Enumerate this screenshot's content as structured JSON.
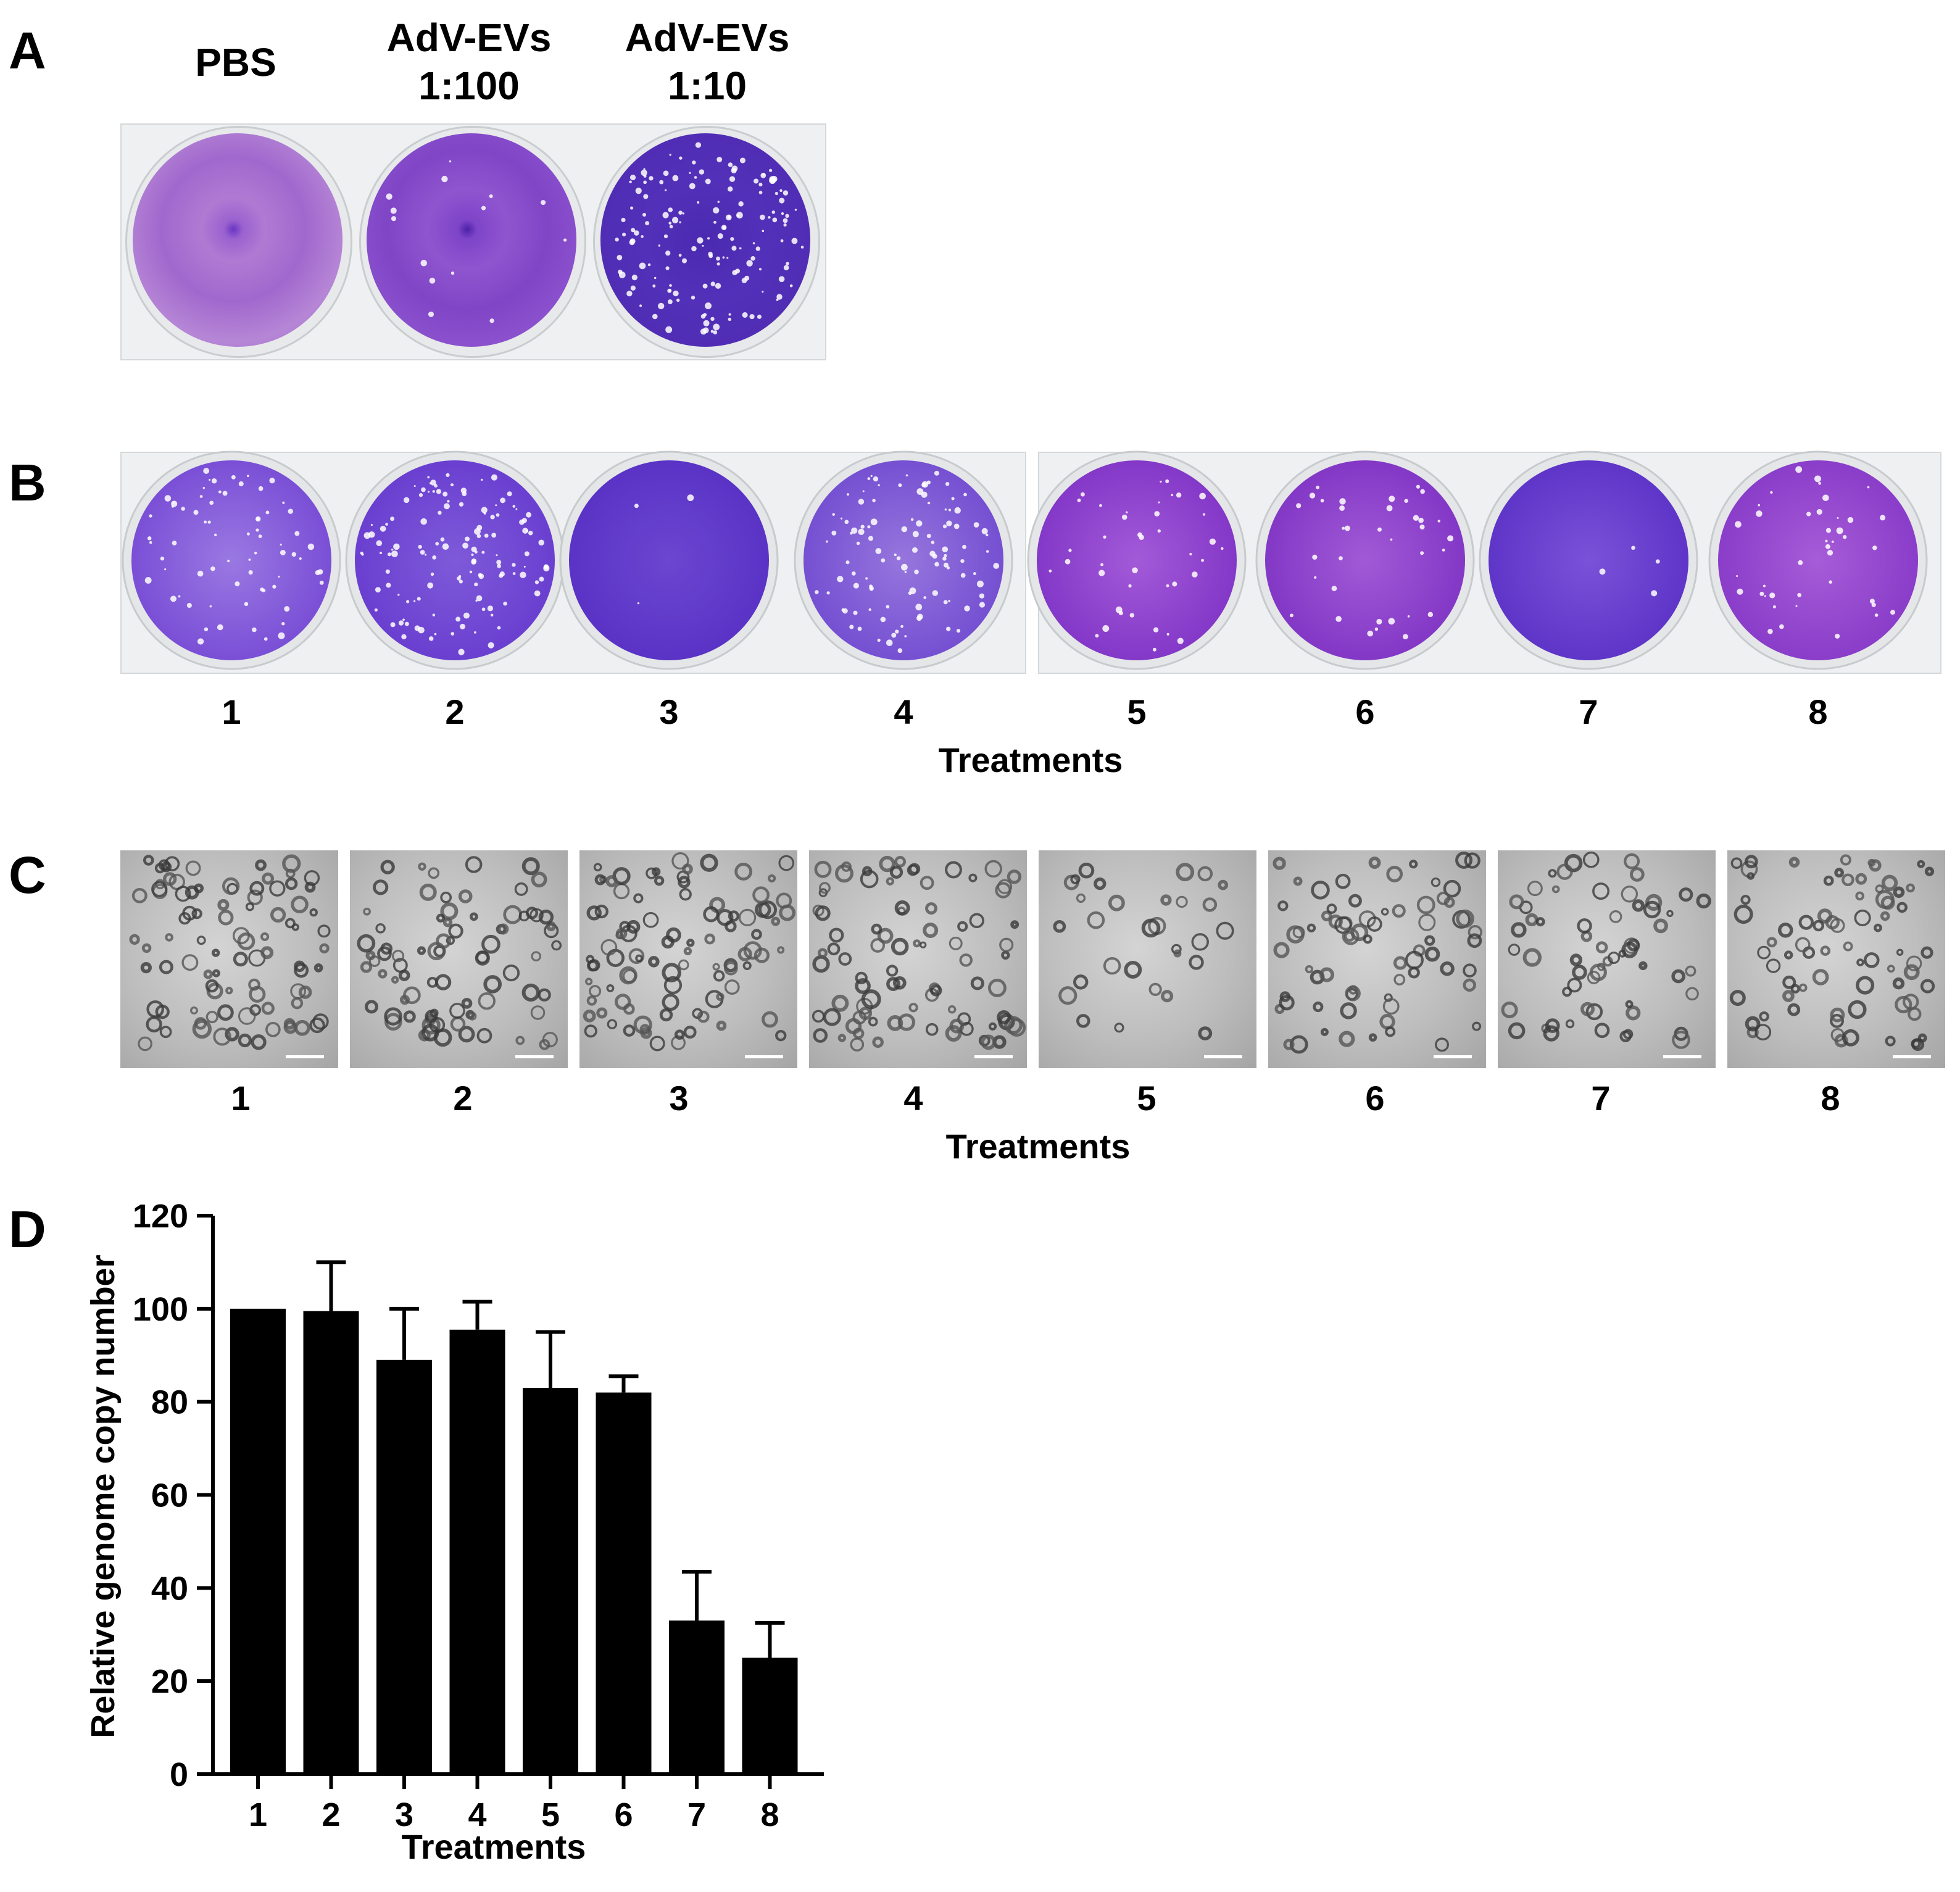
{
  "panels": {
    "a": {
      "letter": "A",
      "columns": [
        {
          "line1": "PBS",
          "line2": ""
        },
        {
          "line1": "AdV-EVs",
          "line2": "1:100"
        },
        {
          "line1": "AdV-EVs",
          "line2": "1:10"
        }
      ]
    },
    "b": {
      "letter": "B",
      "wells": [
        "1",
        "2",
        "3",
        "4",
        "5",
        "6",
        "7",
        "8"
      ],
      "xlabel": "Treatments"
    },
    "c": {
      "letter": "C",
      "images": [
        "1",
        "2",
        "3",
        "4",
        "5",
        "6",
        "7",
        "8"
      ],
      "xlabel": "Treatments"
    },
    "d": {
      "letter": "D"
    }
  },
  "colors": {
    "crystal_violet": "#7b3fd6",
    "bar": "#000000"
  },
  "chart_data": {
    "type": "bar",
    "categories": [
      "1",
      "2",
      "3",
      "4",
      "5",
      "6",
      "7",
      "8"
    ],
    "values": [
      100,
      99.5,
      89,
      95.5,
      83,
      82,
      33,
      25
    ],
    "errors": [
      0,
      10.5,
      11,
      6,
      12,
      3.5,
      10.5,
      7.5
    ],
    "xlabel": "Treatments",
    "ylabel": "Relative genome copy number",
    "ylim": [
      0,
      120
    ],
    "yticks": [
      "0",
      "20",
      "40",
      "60",
      "80",
      "100",
      "120"
    ],
    "grid": false
  }
}
